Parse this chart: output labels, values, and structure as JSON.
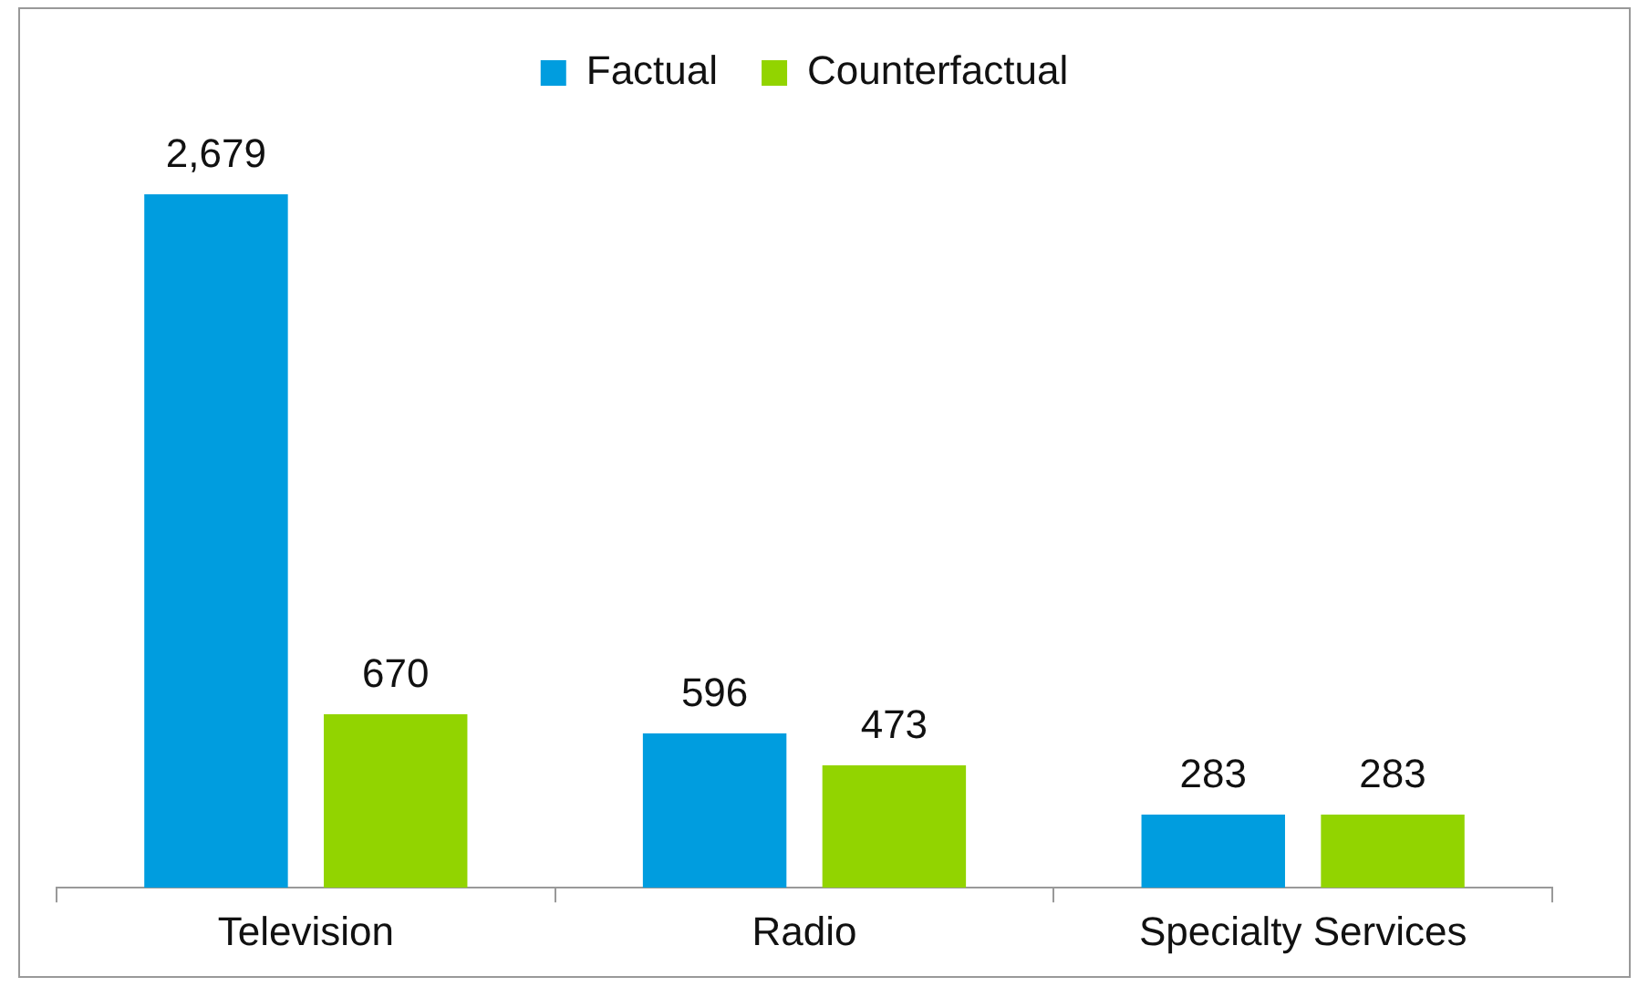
{
  "chart_data": {
    "type": "bar",
    "categories": [
      "Television",
      "Radio",
      "Specialty Services"
    ],
    "series": [
      {
        "name": "Factual",
        "color": "#009ddf",
        "values": [
          2679,
          596,
          283
        ],
        "value_labels": [
          "2,679",
          "596",
          "283"
        ]
      },
      {
        "name": "Counterfactual",
        "color": "#92d400",
        "values": [
          670,
          473,
          283
        ],
        "value_labels": [
          "670",
          "473",
          "283"
        ]
      }
    ],
    "legend": "top"
  }
}
